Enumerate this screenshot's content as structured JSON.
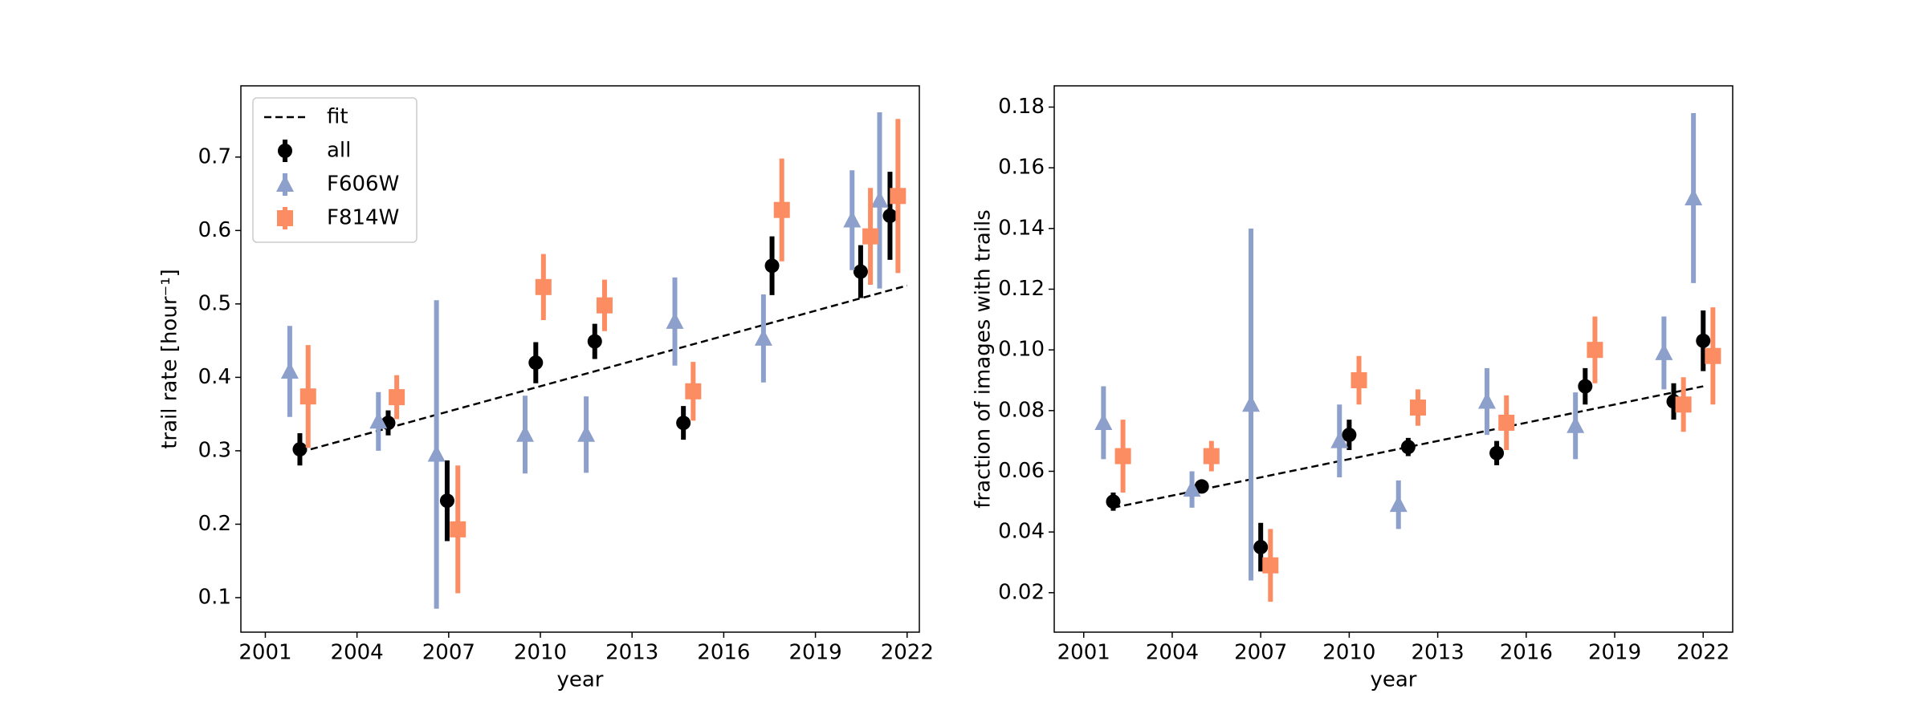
{
  "chart_data": [
    {
      "type": "errorbar",
      "xlabel": "year",
      "ylabel": "trail rate [hour⁻¹]",
      "xlim": [
        2000.2,
        2022.4
      ],
      "xticks": [
        2001,
        2004,
        2007,
        2010,
        2013,
        2016,
        2019,
        2022
      ],
      "ylim": [
        0.053,
        0.797
      ],
      "yticks": [
        0.1,
        0.2,
        0.3,
        0.4,
        0.5,
        0.6,
        0.7
      ],
      "legend": "upper left",
      "series": [
        {
          "name": "fit",
          "color": "#000000",
          "linestyle": "dashed",
          "x": [
            2002.13,
            2022
          ],
          "values": [
            0.298,
            0.525
          ]
        },
        {
          "name": "all",
          "color": "#000000",
          "marker": "circle",
          "x": [
            2002.13,
            2005.02,
            2006.95,
            2009.85,
            2011.78,
            2014.68,
            2017.58,
            2020.48,
            2021.44
          ],
          "values": [
            0.302,
            0.338,
            0.232,
            0.42,
            0.449,
            0.338,
            0.552,
            0.544,
            0.62
          ],
          "errors": [
            0.022,
            0.017,
            0.055,
            0.028,
            0.024,
            0.023,
            0.04,
            0.036,
            0.06
          ]
        },
        {
          "name": "F606W",
          "color": "#8da0cb",
          "marker": "triangle",
          "x": [
            2001.8,
            2004.7,
            2006.6,
            2009.5,
            2011.5,
            2014.4,
            2017.3,
            2020.2,
            2021.1
          ],
          "values": [
            0.408,
            0.34,
            0.295,
            0.322,
            0.322,
            0.476,
            0.453,
            0.614,
            0.641
          ],
          "errors": [
            0.062,
            0.04,
            0.21,
            0.053,
            0.052,
            0.06,
            0.06,
            0.068,
            0.12
          ]
        },
        {
          "name": "F814W",
          "color": "#fc8d62",
          "marker": "square",
          "x": [
            2002.4,
            2005.3,
            2007.3,
            2010.1,
            2012.1,
            2015.0,
            2017.9,
            2020.8,
            2021.7
          ],
          "values": [
            0.374,
            0.373,
            0.193,
            0.523,
            0.498,
            0.381,
            0.628,
            0.592,
            0.647
          ],
          "errors": [
            0.07,
            0.03,
            0.087,
            0.045,
            0.035,
            0.04,
            0.07,
            0.066,
            0.105
          ]
        }
      ]
    },
    {
      "type": "errorbar",
      "xlabel": "year",
      "ylabel": "fraction of images with trails",
      "xlim": [
        2000.0,
        2023.0
      ],
      "xticks": [
        2001,
        2004,
        2007,
        2010,
        2013,
        2016,
        2019,
        2022
      ],
      "ylim": [
        0.007,
        0.187
      ],
      "yticks": [
        {
          "value": 0.02,
          "label": "0.02"
        },
        {
          "value": 0.04,
          "label": "0.04"
        },
        {
          "value": 0.06,
          "label": "0.06"
        },
        {
          "value": 0.08,
          "label": "0.08"
        },
        {
          "value": 0.1,
          "label": "0.10"
        },
        {
          "value": 0.12,
          "label": "0.12"
        },
        {
          "value": 0.14,
          "label": "0.14"
        },
        {
          "value": 0.16,
          "label": "0.16"
        },
        {
          "value": 0.18,
          "label": "0.18"
        }
      ],
      "series": [
        {
          "name": "fit",
          "color": "#000000",
          "linestyle": "dashed",
          "x": [
            2002,
            2022
          ],
          "values": [
            0.048,
            0.088
          ]
        },
        {
          "name": "all",
          "color": "#000000",
          "marker": "circle",
          "x": [
            2002.0,
            2005.0,
            2007.0,
            2010.0,
            2012.0,
            2015.0,
            2018.0,
            2021.0,
            2022.0
          ],
          "values": [
            0.05,
            0.055,
            0.035,
            0.072,
            0.068,
            0.066,
            0.088,
            0.083,
            0.103
          ],
          "errors": [
            0.003,
            0.002,
            0.008,
            0.005,
            0.003,
            0.004,
            0.006,
            0.006,
            0.01
          ]
        },
        {
          "name": "F606W",
          "color": "#8da0cb",
          "marker": "triangle",
          "x": [
            2001.67,
            2004.67,
            2006.67,
            2009.67,
            2011.67,
            2014.67,
            2017.67,
            2020.67,
            2021.67
          ],
          "values": [
            0.076,
            0.054,
            0.082,
            0.07,
            0.049,
            0.083,
            0.075,
            0.099,
            0.15
          ],
          "errors": [
            0.012,
            0.006,
            0.058,
            0.012,
            0.008,
            0.011,
            0.011,
            0.012,
            0.028
          ]
        },
        {
          "name": "F814W",
          "color": "#fc8d62",
          "marker": "square",
          "x": [
            2002.33,
            2005.33,
            2007.33,
            2010.33,
            2012.33,
            2015.33,
            2018.33,
            2021.33,
            2022.33
          ],
          "values": [
            0.065,
            0.065,
            0.029,
            0.09,
            0.081,
            0.076,
            0.1,
            0.082,
            0.098
          ],
          "errors": [
            0.012,
            0.005,
            0.012,
            0.008,
            0.006,
            0.009,
            0.011,
            0.009,
            0.016
          ]
        }
      ]
    }
  ]
}
